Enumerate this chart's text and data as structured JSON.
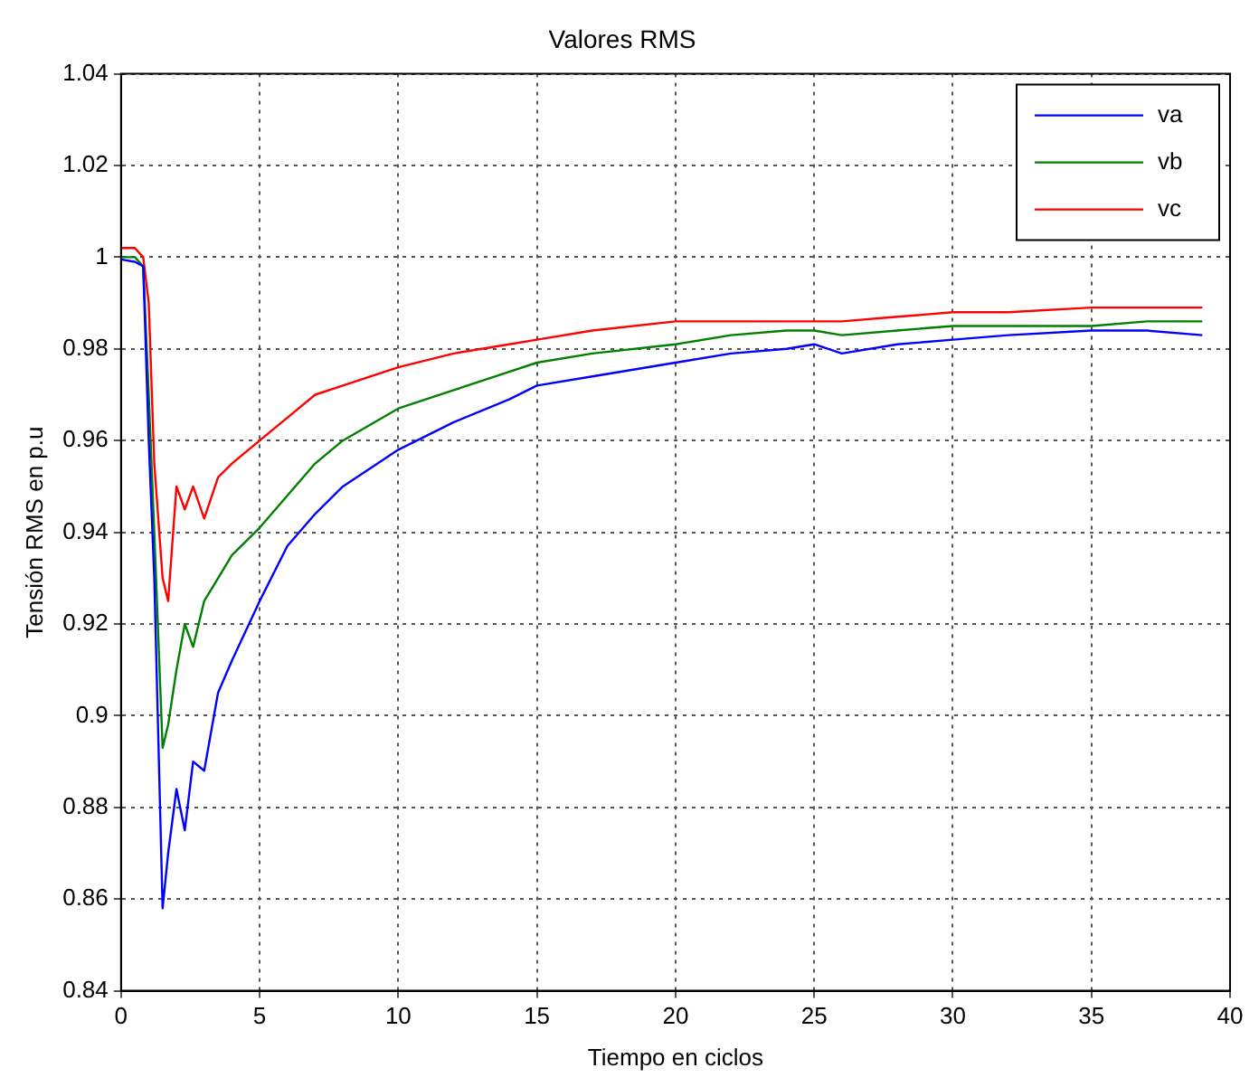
{
  "chart_data": {
    "type": "line",
    "title": "Valores RMS",
    "xlabel": "Tiempo en ciclos",
    "ylabel": "Tensión RMS en p.u",
    "x": [
      0,
      0.5,
      0.8,
      1.0,
      1.2,
      1.5,
      1.7,
      2,
      2.3,
      2.6,
      3,
      3.5,
      4,
      5,
      6,
      7,
      8,
      10,
      12,
      14,
      15,
      17,
      20,
      22,
      24,
      25,
      26,
      28,
      30,
      32,
      35,
      37,
      39
    ],
    "series": [
      {
        "name": "va",
        "color": "#0000ff",
        "values": [
          0.9995,
          0.999,
          0.998,
          0.96,
          0.93,
          0.858,
          0.87,
          0.884,
          0.875,
          0.89,
          0.888,
          0.905,
          0.912,
          0.925,
          0.937,
          0.944,
          0.95,
          0.958,
          0.964,
          0.969,
          0.972,
          0.974,
          0.977,
          0.979,
          0.98,
          0.981,
          0.979,
          0.981,
          0.982,
          0.983,
          0.984,
          0.984,
          0.983
        ]
      },
      {
        "name": "vb",
        "color": "#008000",
        "values": [
          1.0,
          1.0,
          0.998,
          0.97,
          0.94,
          0.893,
          0.898,
          0.91,
          0.92,
          0.915,
          0.925,
          0.93,
          0.935,
          0.941,
          0.948,
          0.955,
          0.96,
          0.967,
          0.971,
          0.975,
          0.977,
          0.979,
          0.981,
          0.983,
          0.984,
          0.984,
          0.983,
          0.984,
          0.985,
          0.985,
          0.985,
          0.986,
          0.986
        ]
      },
      {
        "name": "vc",
        "color": "#ff0000",
        "values": [
          1.002,
          1.002,
          1.0,
          0.99,
          0.955,
          0.93,
          0.925,
          0.95,
          0.945,
          0.95,
          0.943,
          0.952,
          0.955,
          0.96,
          0.965,
          0.97,
          0.972,
          0.976,
          0.979,
          0.981,
          0.982,
          0.984,
          0.986,
          0.986,
          0.986,
          0.986,
          0.986,
          0.987,
          0.988,
          0.988,
          0.989,
          0.989,
          0.989
        ]
      }
    ],
    "xlim": [
      0,
      40
    ],
    "xticks": [
      0,
      5,
      10,
      15,
      20,
      25,
      30,
      35,
      40
    ],
    "ylim": [
      0.84,
      1.04
    ],
    "yticks": [
      0.84,
      0.86,
      0.88,
      0.9,
      0.92,
      0.94,
      0.96,
      0.98,
      1,
      1.02,
      1.04
    ],
    "grid": true,
    "legend": "top right",
    "line_style": "solid",
    "marker": "none"
  }
}
